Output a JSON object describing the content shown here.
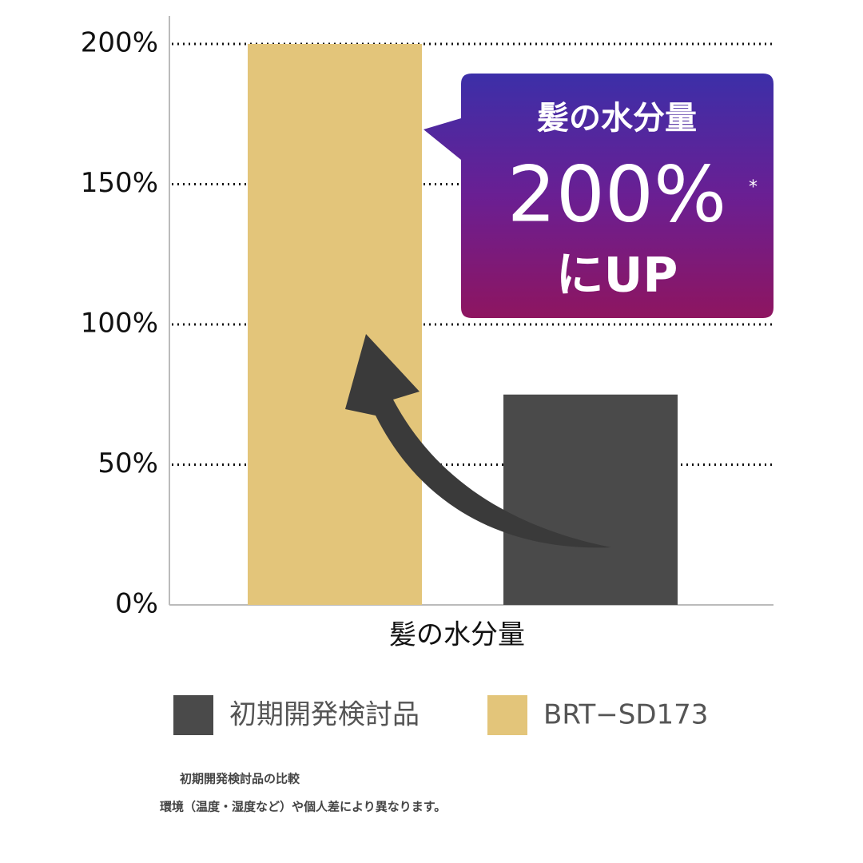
{
  "chart_data": {
    "type": "bar",
    "categories": [
      "髪の水分量"
    ],
    "series": [
      {
        "name": "初期開発検討品",
        "color": "#4a4a4a",
        "values": [
          75
        ]
      },
      {
        "name": "BRT−SD173",
        "color": "#e3c57a",
        "values": [
          200
        ]
      }
    ],
    "ylim": [
      0,
      200
    ],
    "yticks": [
      {
        "value": 0,
        "label": "0%"
      },
      {
        "value": 50,
        "label": "50%"
      },
      {
        "value": 100,
        "label": "100%"
      },
      {
        "value": 150,
        "label": "150%"
      },
      {
        "value": 200,
        "label": "200%"
      }
    ],
    "grid": true,
    "legend": "bottom",
    "callout": {
      "title": "髪の水分量",
      "value": "200%",
      "asterisk": "*",
      "suffix": "にUP"
    },
    "footnotes": [
      "初期開発検討品の比較",
      "環境（温度・湿度など）や個人差により異なります。"
    ]
  }
}
